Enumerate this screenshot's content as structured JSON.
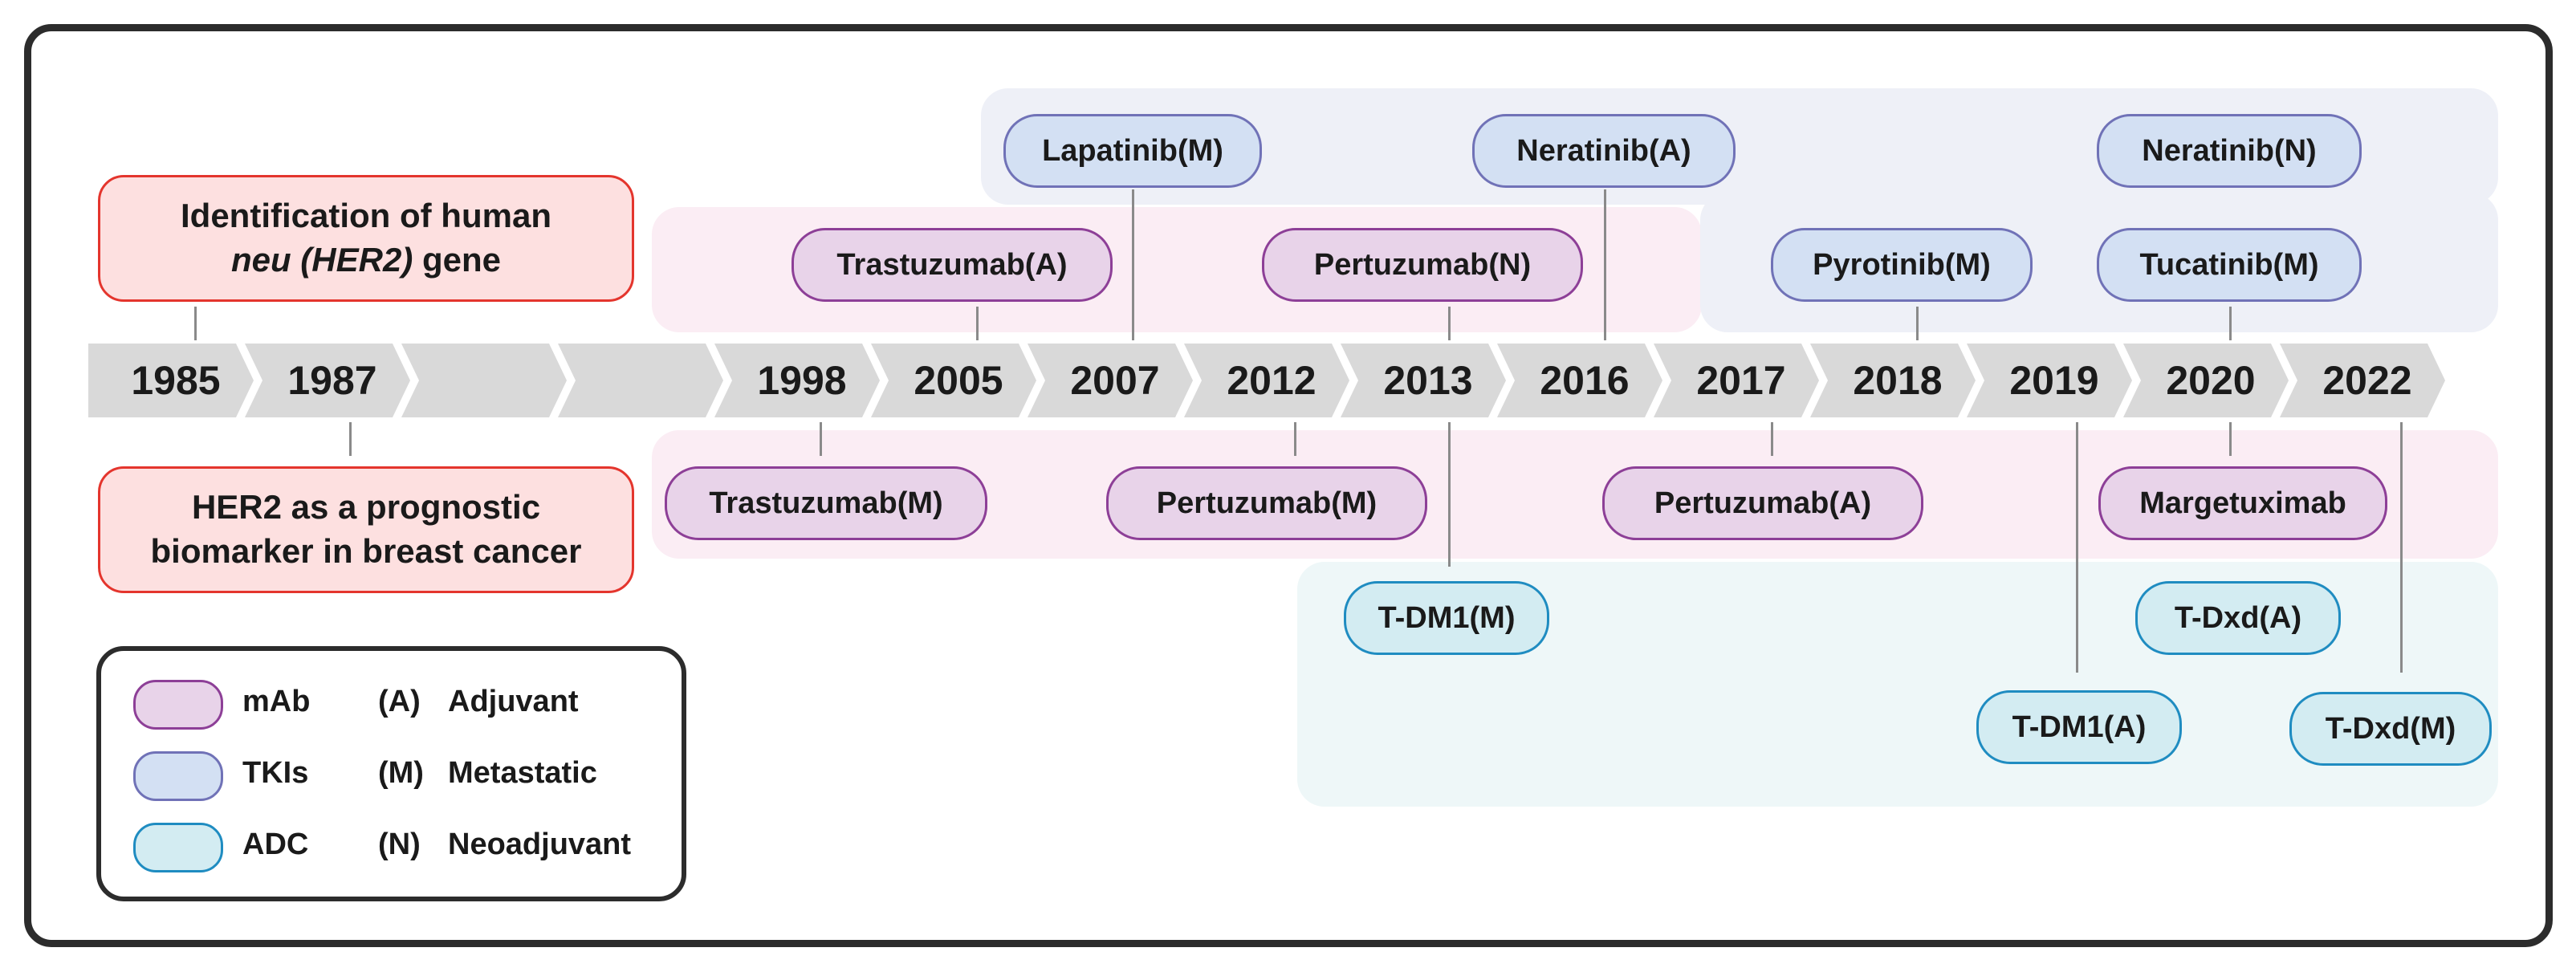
{
  "years": [
    "1985",
    "1987",
    "",
    "",
    "1998",
    "2005",
    "2007",
    "2012",
    "2013",
    "2016",
    "2017",
    "2018",
    "2019",
    "2020",
    "2022"
  ],
  "events": {
    "gene_line1": "Identification of human",
    "gene_italic": "neu (HER2)",
    "gene_rest": " gene",
    "biomarker_line1": "HER2 as a prognostic",
    "biomarker_line2": "biomarker in breast cancer"
  },
  "drugs": {
    "lapatinib_m": "Lapatinib(M)",
    "neratinib_a": "Neratinib(A)",
    "neratinib_n": "Neratinib(N)",
    "trastuzumab_a": "Trastuzumab(A)",
    "pertuzumab_n": "Pertuzumab(N)",
    "pyrotinib_m": "Pyrotinib(M)",
    "tucatinib_m": "Tucatinib(M)",
    "trastuzumab_m": "Trastuzumab(M)",
    "pertuzumab_m": "Pertuzumab(M)",
    "pertuzumab_a": "Pertuzumab(A)",
    "margetuximab": "Margetuximab",
    "tdm1_m": "T-DM1(M)",
    "tdxd_a": "T-Dxd(A)",
    "tdm1_a": "T-DM1(A)",
    "tdxd_m": "T-Dxd(M)"
  },
  "legend": {
    "mab": "mAb",
    "tkis": "TKIs",
    "adc": "ADC",
    "a_code": "(A)",
    "a_label": "Adjuvant",
    "m_code": "(M)",
    "m_label": "Metastatic",
    "n_code": "(N)",
    "n_label": "Neoadjuvant"
  },
  "colors": {
    "mab_fill": "#e8d3e9",
    "mab_border": "#8d3f97",
    "tki_fill": "#d3e0f3",
    "tki_border": "#7072b7",
    "adc_fill": "#d3ecf2",
    "adc_border": "#1f8cc1",
    "event_fill": "#fde0e0",
    "event_border": "#e4352d"
  }
}
